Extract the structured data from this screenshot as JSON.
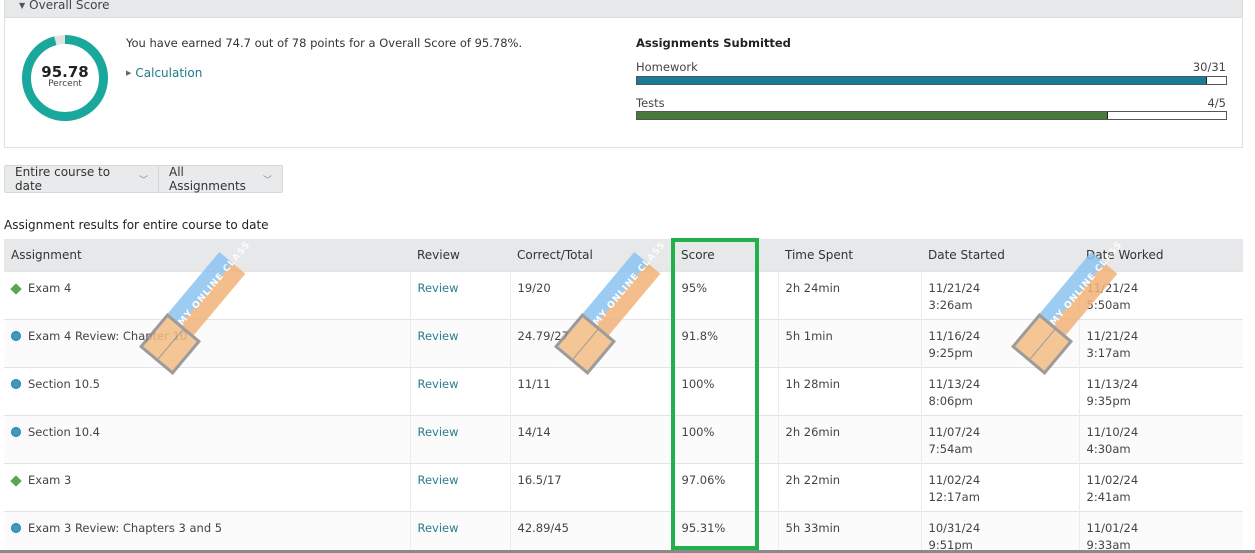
{
  "overall": {
    "header": "Overall Score",
    "score_value": "95.78",
    "score_unit": "Percent",
    "score_percent": 95.78,
    "earned_text": "You have earned 74.7 out of 78 points for a Overall Score of 95.78%.",
    "calculation_link": "Calculation",
    "colors": {
      "donut": "#1aa89c",
      "donut_remainder": "#e2e2e2"
    }
  },
  "submitted": {
    "title": "Assignments Submitted",
    "bars": [
      {
        "label": "Homework",
        "count": "30/31",
        "fraction": 0.9677,
        "color": "#1a7a99"
      },
      {
        "label": "Tests",
        "count": "4/5",
        "fraction": 0.8,
        "color": "#4a7a3a"
      }
    ]
  },
  "filters": {
    "range": "Entire course to date",
    "type": "All Assignments"
  },
  "results": {
    "caption": "Assignment results for entire course to date",
    "columns": [
      "Assignment",
      "Review",
      "Correct/Total",
      "Score",
      "Time Spent",
      "Date Started",
      "Date Worked"
    ],
    "rows": [
      {
        "icon": "diamond",
        "assignment": "Exam 4",
        "review": "Review",
        "correct": "19/20",
        "score": "95%",
        "time": "2h 24min",
        "started_date": "11/21/24",
        "started_time": "3:26am",
        "worked_date": "11/21/24",
        "worked_time": "5:50am"
      },
      {
        "icon": "circle",
        "assignment": "Exam 4 Review: Chapter 10",
        "review": "Review",
        "correct": "24.79/27",
        "score": "91.8%",
        "time": "5h 1min",
        "started_date": "11/16/24",
        "started_time": "9:25pm",
        "worked_date": "11/21/24",
        "worked_time": "3:17am"
      },
      {
        "icon": "circle",
        "assignment": "Section 10.5",
        "review": "Review",
        "correct": "11/11",
        "score": "100%",
        "time": "1h 28min",
        "started_date": "11/13/24",
        "started_time": "8:06pm",
        "worked_date": "11/13/24",
        "worked_time": "9:35pm"
      },
      {
        "icon": "circle",
        "assignment": "Section 10.4",
        "review": "Review",
        "correct": "14/14",
        "score": "100%",
        "time": "2h 26min",
        "started_date": "11/07/24",
        "started_time": "7:54am",
        "worked_date": "11/10/24",
        "worked_time": "4:30am"
      },
      {
        "icon": "diamond",
        "assignment": "Exam 3",
        "review": "Review",
        "correct": "16.5/17",
        "score": "97.06%",
        "time": "2h 22min",
        "started_date": "11/02/24",
        "started_time": "12:17am",
        "worked_date": "11/02/24",
        "worked_time": "2:41am"
      },
      {
        "icon": "circle",
        "assignment": "Exam 3 Review: Chapters 3 and 5",
        "review": "Review",
        "correct": "42.89/45",
        "score": "95.31%",
        "time": "5h 33min",
        "started_date": "10/31/24",
        "started_time": "9:51pm",
        "worked_date": "11/01/24",
        "worked_time": "9:33am"
      }
    ]
  },
  "highlight_color": "#22b04a",
  "watermark": {
    "text": "GO TAKE MY ONLINE CLASS"
  }
}
